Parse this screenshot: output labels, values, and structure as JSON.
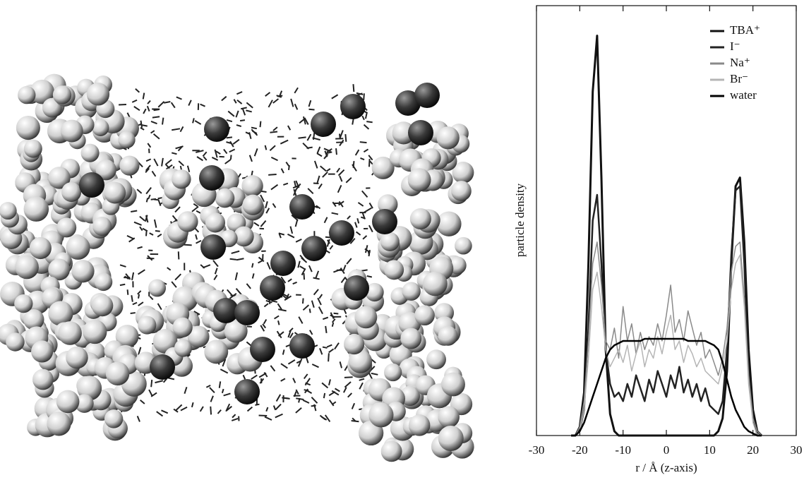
{
  "chart_data": {
    "type": "line",
    "x_label": "r / Å (z-axis)",
    "y_label": "particle density",
    "xlim": [
      -30,
      30
    ],
    "xticks": [
      -30,
      -20,
      -10,
      0,
      10,
      20,
      30
    ],
    "ylim": [
      0,
      100
    ],
    "legend": "upper right",
    "x": [
      -22,
      -21,
      -20,
      -19,
      -18,
      -17,
      -16,
      -15,
      -14,
      -13,
      -12,
      -11,
      -10,
      -9,
      -8,
      -7,
      -6,
      -5,
      -4,
      -3,
      -2,
      -1,
      0,
      1,
      2,
      3,
      4,
      5,
      6,
      7,
      8,
      9,
      10,
      11,
      12,
      13,
      14,
      15,
      16,
      17,
      18,
      19,
      20,
      21,
      22
    ],
    "series": [
      {
        "name": "TBA⁺",
        "color": "#111111",
        "values": [
          0,
          0,
          2,
          10,
          40,
          80,
          93,
          60,
          20,
          5,
          1,
          0,
          0,
          0,
          0,
          0,
          0,
          0,
          0,
          0,
          0,
          0,
          0,
          0,
          0,
          0,
          0,
          0,
          0,
          0,
          0,
          0,
          0,
          0,
          1,
          4,
          15,
          40,
          58,
          60,
          45,
          20,
          6,
          1,
          0
        ]
      },
      {
        "name": "I⁻",
        "color": "#222222",
        "values": [
          0,
          0,
          1,
          6,
          25,
          50,
          56,
          40,
          20,
          12,
          9,
          10,
          8,
          12,
          9,
          14,
          11,
          8,
          13,
          10,
          15,
          12,
          9,
          14,
          11,
          16,
          10,
          13,
          9,
          12,
          8,
          11,
          7,
          6,
          5,
          8,
          20,
          42,
          57,
          58,
          40,
          15,
          4,
          0,
          0
        ]
      },
      {
        "name": "Na⁺",
        "color": "#8a8a8a",
        "values": [
          0,
          0,
          2,
          8,
          22,
          40,
          45,
          35,
          22,
          20,
          25,
          18,
          30,
          22,
          26,
          19,
          24,
          20,
          23,
          21,
          26,
          22,
          28,
          35,
          24,
          27,
          22,
          29,
          25,
          21,
          24,
          18,
          20,
          17,
          14,
          18,
          25,
          38,
          44,
          45,
          32,
          14,
          4,
          1,
          0
        ]
      },
      {
        "name": "Br⁻",
        "color": "#b5b5b5",
        "values": [
          0,
          0,
          1,
          6,
          18,
          34,
          38,
          30,
          20,
          16,
          18,
          20,
          17,
          21,
          15,
          19,
          22,
          16,
          20,
          18,
          23,
          19,
          24,
          28,
          20,
          22,
          17,
          21,
          19,
          16,
          18,
          15,
          14,
          13,
          12,
          16,
          22,
          34,
          40,
          42,
          30,
          12,
          3,
          0,
          0
        ]
      },
      {
        "name": "water",
        "color": "#000000",
        "values": [
          0,
          0,
          1,
          3,
          6,
          9,
          12,
          15,
          18,
          20,
          21,
          21.5,
          22,
          22,
          22,
          22,
          22,
          22.5,
          22.5,
          22.5,
          22.5,
          22.5,
          22.5,
          22.5,
          22.5,
          22.5,
          22.5,
          22,
          22,
          22,
          22,
          22,
          21.5,
          21,
          20,
          17,
          13,
          9,
          6,
          4,
          2,
          1,
          0.5,
          0,
          0
        ]
      }
    ]
  }
}
